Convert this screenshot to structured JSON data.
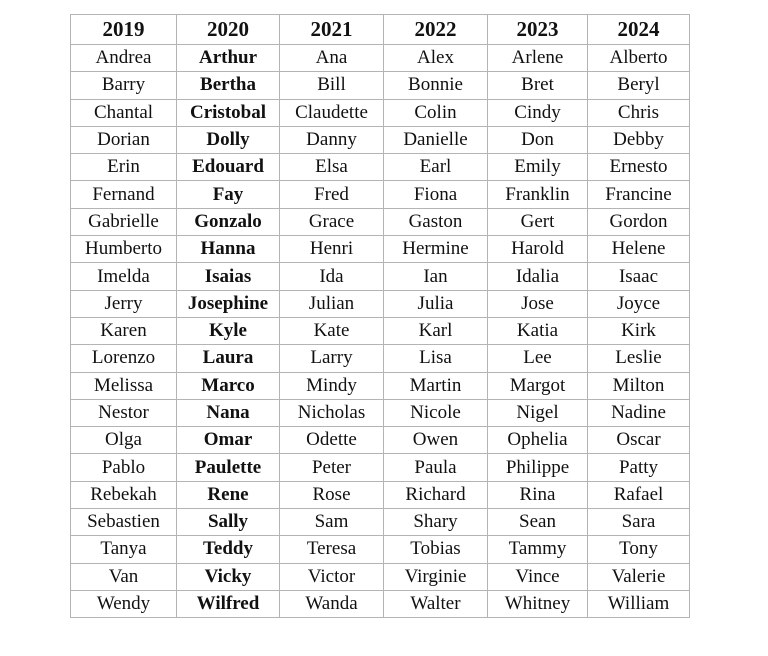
{
  "table": {
    "headers": [
      "2019",
      "2020",
      "2021",
      "2022",
      "2023",
      "2024"
    ],
    "bold_column": 1,
    "rows": [
      [
        "Andrea",
        "Arthur",
        "Ana",
        "Alex",
        "Arlene",
        "Alberto"
      ],
      [
        "Barry",
        "Bertha",
        "Bill",
        "Bonnie",
        "Bret",
        "Beryl"
      ],
      [
        "Chantal",
        "Cristobal",
        "Claudette",
        "Colin",
        "Cindy",
        "Chris"
      ],
      [
        "Dorian",
        "Dolly",
        "Danny",
        "Danielle",
        "Don",
        "Debby"
      ],
      [
        "Erin",
        "Edouard",
        "Elsa",
        "Earl",
        "Emily",
        "Ernesto"
      ],
      [
        "Fernand",
        "Fay",
        "Fred",
        "Fiona",
        "Franklin",
        "Francine"
      ],
      [
        "Gabrielle",
        "Gonzalo",
        "Grace",
        "Gaston",
        "Gert",
        "Gordon"
      ],
      [
        "Humberto",
        "Hanna",
        "Henri",
        "Hermine",
        "Harold",
        "Helene"
      ],
      [
        "Imelda",
        "Isaias",
        "Ida",
        "Ian",
        "Idalia",
        "Isaac"
      ],
      [
        "Jerry",
        "Josephine",
        "Julian",
        "Julia",
        "Jose",
        "Joyce"
      ],
      [
        "Karen",
        "Kyle",
        "Kate",
        "Karl",
        "Katia",
        "Kirk"
      ],
      [
        "Lorenzo",
        "Laura",
        "Larry",
        "Lisa",
        "Lee",
        "Leslie"
      ],
      [
        "Melissa",
        "Marco",
        "Mindy",
        "Martin",
        "Margot",
        "Milton"
      ],
      [
        "Nestor",
        "Nana",
        "Nicholas",
        "Nicole",
        "Nigel",
        "Nadine"
      ],
      [
        "Olga",
        "Omar",
        "Odette",
        "Owen",
        "Ophelia",
        "Oscar"
      ],
      [
        "Pablo",
        "Paulette",
        "Peter",
        "Paula",
        "Philippe",
        "Patty"
      ],
      [
        "Rebekah",
        "Rene",
        "Rose",
        "Richard",
        "Rina",
        "Rafael"
      ],
      [
        "Sebastien",
        "Sally",
        "Sam",
        "Shary",
        "Sean",
        "Sara"
      ],
      [
        "Tanya",
        "Teddy",
        "Teresa",
        "Tobias",
        "Tammy",
        "Tony"
      ],
      [
        "Van",
        "Vicky",
        "Victor",
        "Virginie",
        "Vince",
        "Valerie"
      ],
      [
        "Wendy",
        "Wilfred",
        "Wanda",
        "Walter",
        "Whitney",
        "William"
      ]
    ]
  }
}
